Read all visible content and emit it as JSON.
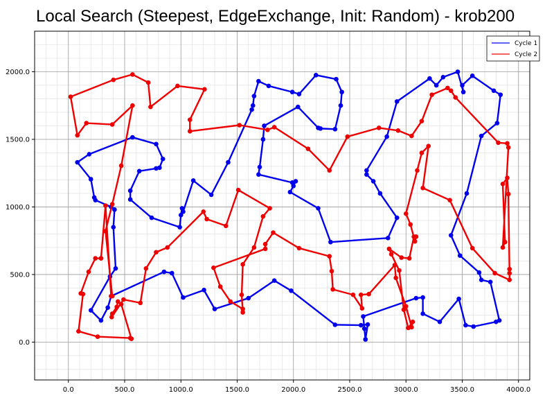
{
  "chart_data": {
    "type": "line",
    "title": "Local Search (Steepest, EdgeExchange, Init: Random) - krob200",
    "xlabel": "",
    "ylabel": "",
    "xlim": [
      -300,
      4100
    ],
    "ylim": [
      -280,
      2300
    ],
    "xticks": [
      "0.0",
      "500.0",
      "1000.0",
      "1500.0",
      "2000.0",
      "2500.0",
      "3000.0",
      "3500.0",
      "4000.0"
    ],
    "xtick_values": [
      0,
      500,
      1000,
      1500,
      2000,
      2500,
      3000,
      3500,
      4000
    ],
    "yticks": [
      "0.0",
      "500.0",
      "1000.0",
      "1500.0",
      "2000.0"
    ],
    "ytick_values": [
      0,
      500,
      1000,
      1500,
      2000
    ],
    "grid": true,
    "legend_position": "top-right",
    "series": [
      {
        "name": "Cycle 1",
        "color": "#0000ee",
        "points": [
          [
            2640,
            20
          ],
          [
            2660,
            130
          ],
          [
            2600,
            125
          ],
          [
            2370,
            128
          ],
          [
            1980,
            380
          ],
          [
            1830,
            455
          ],
          [
            1600,
            325
          ],
          [
            1300,
            245
          ],
          [
            1205,
            385
          ],
          [
            1020,
            330
          ],
          [
            920,
            510
          ],
          [
            850,
            520
          ],
          [
            380,
            340
          ],
          [
            350,
            255
          ],
          [
            290,
            160
          ],
          [
            200,
            235
          ],
          [
            370,
            485
          ],
          [
            420,
            545
          ],
          [
            400,
            850
          ],
          [
            410,
            980
          ],
          [
            380,
            1000
          ],
          [
            240,
            1050
          ],
          [
            230,
            1070
          ],
          [
            200,
            1205
          ],
          [
            80,
            1330
          ],
          [
            185,
            1390
          ],
          [
            570,
            1515
          ],
          [
            780,
            1465
          ],
          [
            840,
            1355
          ],
          [
            810,
            1290
          ],
          [
            780,
            1285
          ],
          [
            630,
            1265
          ],
          [
            550,
            1120
          ],
          [
            550,
            1055
          ],
          [
            740,
            920
          ],
          [
            990,
            850
          ],
          [
            1000,
            940
          ],
          [
            1010,
            990
          ],
          [
            1020,
            965
          ],
          [
            1110,
            1195
          ],
          [
            1270,
            1090
          ],
          [
            1420,
            1330
          ],
          [
            1630,
            1720
          ],
          [
            1640,
            1750
          ],
          [
            1650,
            1820
          ],
          [
            1690,
            1930
          ],
          [
            1780,
            1895
          ],
          [
            1990,
            1850
          ],
          [
            2050,
            1835
          ],
          [
            2200,
            1975
          ],
          [
            2380,
            1945
          ],
          [
            2430,
            1850
          ],
          [
            2420,
            1750
          ],
          [
            2370,
            1575
          ],
          [
            2240,
            1580
          ],
          [
            2220,
            1585
          ],
          [
            2040,
            1740
          ],
          [
            1740,
            1600
          ],
          [
            1730,
            1500
          ],
          [
            1700,
            1295
          ],
          [
            1690,
            1240
          ],
          [
            1990,
            1180
          ],
          [
            2020,
            1190
          ],
          [
            2000,
            1155
          ],
          [
            1970,
            1110
          ],
          [
            2220,
            990
          ],
          [
            2330,
            740
          ],
          [
            2840,
            770
          ],
          [
            2920,
            920
          ],
          [
            2770,
            1100
          ],
          [
            2710,
            1190
          ],
          [
            2650,
            1240
          ],
          [
            2650,
            1270
          ],
          [
            2830,
            1520
          ],
          [
            2920,
            1780
          ],
          [
            3210,
            1950
          ],
          [
            3270,
            1900
          ],
          [
            3330,
            1960
          ],
          [
            3460,
            2000
          ],
          [
            3510,
            1850
          ],
          [
            3500,
            1900
          ],
          [
            3590,
            1970
          ],
          [
            3780,
            1860
          ],
          [
            3840,
            1830
          ],
          [
            3810,
            1620
          ],
          [
            3670,
            1525
          ],
          [
            3540,
            1100
          ],
          [
            3400,
            790
          ],
          [
            3480,
            640
          ],
          [
            3650,
            515
          ],
          [
            3670,
            460
          ],
          [
            3750,
            445
          ],
          [
            3830,
            160
          ],
          [
            3800,
            150
          ],
          [
            3600,
            115
          ],
          [
            3530,
            125
          ],
          [
            3470,
            320
          ],
          [
            3300,
            150
          ],
          [
            3150,
            210
          ],
          [
            3150,
            330
          ],
          [
            3090,
            325
          ],
          [
            2620,
            190
          ],
          [
            2630,
            100
          ],
          [
            2640,
            20
          ]
        ]
      },
      {
        "name": "Cycle 2",
        "color": "#ee0000",
        "points": [
          [
            560,
            25
          ],
          [
            470,
            280
          ],
          [
            440,
            300
          ],
          [
            430,
            260
          ],
          [
            390,
            210
          ],
          [
            385,
            185
          ],
          [
            490,
            315
          ],
          [
            640,
            290
          ],
          [
            690,
            545
          ],
          [
            780,
            665
          ],
          [
            880,
            700
          ],
          [
            1200,
            965
          ],
          [
            1230,
            910
          ],
          [
            1400,
            860
          ],
          [
            1510,
            1125
          ],
          [
            1790,
            990
          ],
          [
            1730,
            930
          ],
          [
            1650,
            700
          ],
          [
            1550,
            575
          ],
          [
            1540,
            350
          ],
          [
            1550,
            220
          ],
          [
            1550,
            245
          ],
          [
            1440,
            300
          ],
          [
            1350,
            410
          ],
          [
            1290,
            550
          ],
          [
            1750,
            690
          ],
          [
            1750,
            725
          ],
          [
            1820,
            810
          ],
          [
            2050,
            695
          ],
          [
            2320,
            635
          ],
          [
            2340,
            525
          ],
          [
            2350,
            390
          ],
          [
            2530,
            350
          ],
          [
            2610,
            250
          ],
          [
            2600,
            350
          ],
          [
            2670,
            355
          ],
          [
            2900,
            570
          ],
          [
            2910,
            475
          ],
          [
            3000,
            265
          ],
          [
            3050,
            110
          ],
          [
            3060,
            150
          ],
          [
            3020,
            105
          ],
          [
            2980,
            240
          ],
          [
            2940,
            530
          ],
          [
            2870,
            650
          ],
          [
            2850,
            690
          ],
          [
            2960,
            625
          ],
          [
            3030,
            620
          ],
          [
            3070,
            780
          ],
          [
            3090,
            780
          ],
          [
            3080,
            745
          ],
          [
            3040,
            870
          ],
          [
            3000,
            950
          ],
          [
            3100,
            1270
          ],
          [
            3140,
            1400
          ],
          [
            3200,
            1450
          ],
          [
            3150,
            1140
          ],
          [
            3390,
            1050
          ],
          [
            3590,
            695
          ],
          [
            3790,
            510
          ],
          [
            3920,
            460
          ],
          [
            3920,
            540
          ],
          [
            3920,
            510
          ],
          [
            3910,
            1095
          ],
          [
            3900,
            1215
          ],
          [
            3860,
            1170
          ],
          [
            3880,
            740
          ],
          [
            3860,
            700
          ],
          [
            3910,
            1440
          ],
          [
            3900,
            1470
          ],
          [
            3820,
            1475
          ],
          [
            3440,
            1810
          ],
          [
            3400,
            1860
          ],
          [
            3370,
            1880
          ],
          [
            3230,
            1830
          ],
          [
            3140,
            1635
          ],
          [
            3050,
            1525
          ],
          [
            2930,
            1565
          ],
          [
            2760,
            1585
          ],
          [
            2480,
            1520
          ],
          [
            2320,
            1270
          ],
          [
            2130,
            1430
          ],
          [
            1830,
            1590
          ],
          [
            1770,
            1570
          ],
          [
            1520,
            1605
          ],
          [
            1080,
            1560
          ],
          [
            1080,
            1645
          ],
          [
            1210,
            1870
          ],
          [
            970,
            1895
          ],
          [
            730,
            1740
          ],
          [
            710,
            1920
          ],
          [
            570,
            1980
          ],
          [
            400,
            1940
          ],
          [
            20,
            1815
          ],
          [
            80,
            1530
          ],
          [
            160,
            1620
          ],
          [
            390,
            1610
          ],
          [
            570,
            1750
          ],
          [
            470,
            1305
          ],
          [
            390,
            1020
          ],
          [
            330,
            820
          ],
          [
            390,
            340
          ],
          [
            380,
            340
          ],
          [
            330,
            1010
          ],
          [
            290,
            620
          ],
          [
            290,
            620
          ],
          [
            240,
            620
          ],
          [
            180,
            520
          ],
          [
            110,
            360
          ],
          [
            130,
            355
          ],
          [
            90,
            80
          ],
          [
            260,
            40
          ],
          [
            550,
            30
          ],
          [
            560,
            25
          ]
        ]
      }
    ]
  }
}
